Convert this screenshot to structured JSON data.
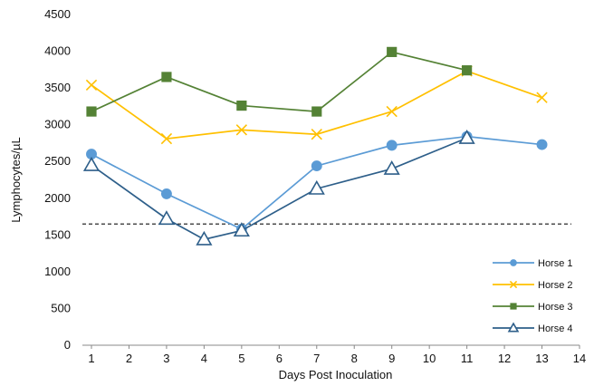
{
  "chart_data": {
    "type": "line",
    "title": "",
    "xlabel": "Days Post Inoculation",
    "ylabel": "Lymphocytes/µL",
    "xlim": [
      1,
      14
    ],
    "ylim": [
      0,
      4500
    ],
    "x_ticks": [
      1,
      2,
      3,
      4,
      5,
      6,
      7,
      8,
      9,
      10,
      11,
      12,
      13,
      14
    ],
    "y_ticks": [
      0,
      500,
      1000,
      1500,
      2000,
      2500,
      3000,
      3500,
      4000,
      4500
    ],
    "grid": false,
    "legend_position": "bottom-right",
    "reference_line": {
      "y": 1650,
      "style": "dashed",
      "color": "#111111"
    },
    "series": [
      {
        "name": "Horse 1",
        "color": "#5b9bd5",
        "marker": "circle",
        "x": [
          1,
          3,
          5,
          7,
          9,
          11,
          13
        ],
        "y": [
          2600,
          2060,
          1580,
          2440,
          2720,
          2840,
          2730
        ]
      },
      {
        "name": "Horse 2",
        "color": "#ffc000",
        "marker": "x",
        "x": [
          1,
          3,
          5,
          7,
          9,
          11,
          13
        ],
        "y": [
          3540,
          2810,
          2930,
          2870,
          3180,
          3730,
          3370
        ]
      },
      {
        "name": "Horse 3",
        "color": "#548235",
        "marker": "square",
        "x": [
          1,
          3,
          5,
          7,
          9,
          11
        ],
        "y": [
          3180,
          3650,
          3260,
          3180,
          3990,
          3740
        ]
      },
      {
        "name": "Horse 4",
        "color": "#2e5f8a",
        "marker": "triangle",
        "x": [
          1,
          3,
          4,
          5,
          7,
          9,
          11
        ],
        "y": [
          2450,
          1720,
          1440,
          1560,
          2130,
          2400,
          2820
        ]
      }
    ]
  }
}
